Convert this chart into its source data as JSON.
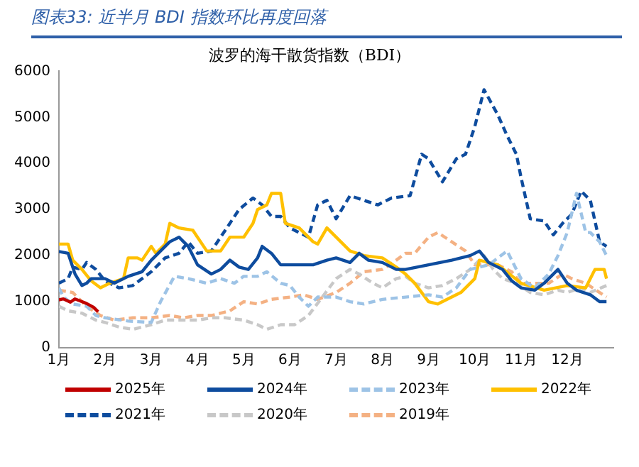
{
  "chart_data": {
    "type": "line",
    "title": "图表33: 近半月 BDI 指数环比再度回落",
    "subtitle": "波罗的海干散货指数（BDI）",
    "xlim": [
      1,
      13
    ],
    "xticks": [
      {
        "value": 1,
        "label": "1月"
      },
      {
        "value": 2,
        "label": "2月"
      },
      {
        "value": 3,
        "label": "3月"
      },
      {
        "value": 4,
        "label": "4月"
      },
      {
        "value": 5,
        "label": "5月"
      },
      {
        "value": 6,
        "label": "6月"
      },
      {
        "value": 7,
        "label": "7月"
      },
      {
        "value": 8,
        "label": "8月"
      },
      {
        "value": 9,
        "label": "9月"
      },
      {
        "value": 10,
        "label": "10月"
      },
      {
        "value": 11,
        "label": "11月"
      },
      {
        "value": 12,
        "label": "12月"
      }
    ],
    "ylim": [
      0,
      6000
    ],
    "yticks": [
      0,
      1000,
      2000,
      3000,
      4000,
      5000,
      6000
    ],
    "grid": false,
    "legend": "bottom",
    "marker": "none",
    "series": [
      {
        "name": "2025年",
        "color": "#c00000",
        "line_style": "solid",
        "x": [
          1.0,
          1.1,
          1.25,
          1.35,
          1.5,
          1.6,
          1.75,
          1.85
        ],
        "values": [
          1040,
          1060,
          990,
          1060,
          1000,
          960,
          880,
          780
        ]
      },
      {
        "name": "2024年",
        "color": "#0e4c9e",
        "line_style": "solid",
        "x": [
          1.0,
          1.2,
          1.35,
          1.5,
          1.6,
          1.7,
          2.0,
          2.2,
          2.5,
          2.8,
          3.0,
          3.2,
          3.4,
          3.6,
          3.8,
          4.0,
          4.3,
          4.5,
          4.7,
          4.9,
          5.1,
          5.3,
          5.4,
          5.6,
          5.8,
          6.0,
          6.5,
          6.8,
          7.0,
          7.3,
          7.5,
          7.7,
          8.0,
          8.3,
          8.5,
          9.0,
          9.5,
          9.9,
          10.1,
          10.3,
          10.6,
          10.8,
          11.0,
          11.3,
          11.5,
          11.8,
          12.0,
          12.2,
          12.5,
          12.7,
          12.85
        ],
        "values": [
          2090,
          2050,
          1600,
          1350,
          1400,
          1500,
          1500,
          1400,
          1550,
          1650,
          1900,
          2100,
          2300,
          2400,
          2200,
          1800,
          1600,
          1700,
          1900,
          1750,
          1700,
          1950,
          2200,
          2050,
          1800,
          1800,
          1800,
          1900,
          1950,
          1850,
          2050,
          1900,
          1850,
          1700,
          1700,
          1800,
          1900,
          2000,
          2100,
          1850,
          1700,
          1450,
          1300,
          1250,
          1400,
          1700,
          1400,
          1250,
          1150,
          1000,
          1000
        ]
      },
      {
        "name": "2023年",
        "color": "#9dc3e6",
        "line_style": "dashed",
        "x": [
          1.0,
          1.1,
          1.3,
          1.6,
          1.8,
          2.0,
          2.5,
          3.0,
          3.2,
          3.5,
          3.8,
          4.2,
          4.5,
          4.8,
          5.0,
          5.3,
          5.5,
          5.8,
          6.0,
          6.2,
          6.4,
          6.6,
          7.0,
          7.3,
          7.6,
          8.0,
          8.5,
          9.0,
          9.3,
          9.6,
          9.9,
          10.3,
          10.7,
          11.0,
          11.3,
          11.6,
          11.8,
          12.0,
          12.2,
          12.4,
          12.5,
          12.7,
          12.85
        ],
        "values": [
          1300,
          1100,
          950,
          900,
          700,
          650,
          580,
          550,
          1000,
          1550,
          1500,
          1400,
          1500,
          1400,
          1550,
          1550,
          1650,
          1400,
          1350,
          1100,
          900,
          1100,
          1100,
          1000,
          950,
          1050,
          1100,
          1150,
          1100,
          1300,
          1700,
          1800,
          2100,
          1500,
          1300,
          1600,
          2000,
          2500,
          3350,
          2500,
          2500,
          2300,
          2000
        ]
      },
      {
        "name": "2022年",
        "color": "#ffc000",
        "line_style": "solid",
        "x": [
          1.0,
          1.2,
          1.3,
          1.5,
          1.7,
          1.9,
          2.1,
          2.4,
          2.5,
          2.7,
          2.8,
          3.0,
          3.1,
          3.3,
          3.4,
          3.6,
          3.9,
          4.0,
          4.2,
          4.5,
          4.7,
          5.0,
          5.2,
          5.3,
          5.5,
          5.6,
          5.8,
          5.9,
          6.2,
          6.5,
          6.6,
          6.8,
          7.0,
          7.3,
          7.6,
          8.0,
          8.3,
          8.5,
          8.7,
          9.0,
          9.2,
          9.5,
          9.7,
          10.0,
          10.1,
          10.5,
          11.0,
          11.5,
          12.0,
          12.4,
          12.6,
          12.8,
          12.85
        ],
        "values": [
          2250,
          2250,
          1900,
          1700,
          1450,
          1300,
          1400,
          1500,
          1950,
          1950,
          1900,
          2200,
          2050,
          2250,
          2700,
          2600,
          2550,
          2400,
          2100,
          2100,
          2400,
          2400,
          2700,
          3000,
          3100,
          3350,
          3350,
          2700,
          2600,
          2300,
          2250,
          2600,
          2400,
          2100,
          2000,
          1950,
          1750,
          1600,
          1400,
          1000,
          950,
          1100,
          1200,
          1500,
          1900,
          1800,
          1400,
          1250,
          1350,
          1300,
          1700,
          1700,
          1500
        ]
      },
      {
        "name": "2021年",
        "color": "#0e4c9e",
        "line_style": "dashed",
        "x": [
          1.0,
          1.2,
          1.3,
          1.5,
          1.6,
          1.8,
          2.0,
          2.3,
          2.6,
          3.0,
          3.3,
          3.6,
          3.8,
          4.0,
          4.3,
          4.6,
          4.9,
          5.2,
          5.4,
          5.6,
          5.8,
          6.0,
          6.4,
          6.6,
          6.8,
          7.0,
          7.3,
          7.6,
          7.9,
          8.2,
          8.6,
          8.85,
          9.0,
          9.3,
          9.6,
          9.8,
          10.0,
          10.2,
          10.5,
          10.7,
          10.9,
          11.0,
          11.2,
          11.5,
          11.7,
          11.9,
          12.1,
          12.3,
          12.5,
          12.7,
          12.85
        ],
        "values": [
          1400,
          1500,
          1750,
          1700,
          1850,
          1700,
          1450,
          1300,
          1350,
          1650,
          1950,
          2050,
          2300,
          2050,
          2100,
          2550,
          3000,
          3250,
          3100,
          2850,
          2850,
          2600,
          2400,
          3100,
          3200,
          2800,
          3300,
          3200,
          3100,
          3250,
          3300,
          4200,
          4100,
          3600,
          4100,
          4200,
          4800,
          5600,
          5050,
          4600,
          4200,
          3700,
          2800,
          2750,
          2450,
          2700,
          2900,
          3400,
          3200,
          2300,
          2200
        ]
      },
      {
        "name": "2020年",
        "color": "#c8c8c8",
        "line_style": "dashed",
        "x": [
          1.0,
          1.2,
          1.5,
          1.8,
          2.0,
          2.3,
          2.6,
          3.0,
          3.3,
          3.6,
          4.0,
          4.3,
          4.6,
          5.0,
          5.3,
          5.5,
          5.8,
          6.1,
          6.4,
          6.7,
          7.0,
          7.3,
          7.5,
          7.8,
          8.0,
          8.3,
          8.5,
          8.7,
          9.0,
          9.3,
          9.6,
          9.9,
          10.2,
          10.4,
          10.6,
          10.9,
          11.2,
          11.5,
          11.8,
          12.0,
          12.3,
          12.5,
          12.85
        ],
        "values": [
          900,
          800,
          750,
          600,
          550,
          450,
          400,
          500,
          600,
          600,
          600,
          650,
          650,
          600,
          500,
          400,
          500,
          500,
          700,
          1100,
          1500,
          1700,
          1600,
          1400,
          1300,
          1500,
          1550,
          1400,
          1300,
          1350,
          1500,
          1700,
          2000,
          1700,
          1500,
          1400,
          1200,
          1150,
          1250,
          1200,
          1300,
          1200,
          1350
        ]
      },
      {
        "name": "2019年",
        "color": "#f4b183",
        "line_style": "dashed",
        "x": [
          1.0,
          1.3,
          1.6,
          1.9,
          2.2,
          2.6,
          3.0,
          3.4,
          3.7,
          4.0,
          4.3,
          4.7,
          5.0,
          5.3,
          5.6,
          6.0,
          6.3,
          6.6,
          7.0,
          7.3,
          7.6,
          8.0,
          8.3,
          8.5,
          8.7,
          9.0,
          9.2,
          9.5,
          9.8,
          10.0,
          10.2,
          10.5,
          10.8,
          11.0,
          11.3,
          11.6,
          11.9,
          12.1,
          12.4,
          12.7,
          12.85
        ],
        "values": [
          1250,
          1200,
          900,
          700,
          600,
          650,
          650,
          700,
          650,
          700,
          700,
          800,
          1000,
          950,
          1050,
          1100,
          1150,
          1050,
          1200,
          1400,
          1650,
          1700,
          1900,
          2050,
          2050,
          2400,
          2500,
          2300,
          2100,
          1800,
          1800,
          1800,
          1650,
          1400,
          1400,
          1400,
          1600,
          1500,
          1400,
          1200,
          1100
        ]
      }
    ]
  }
}
